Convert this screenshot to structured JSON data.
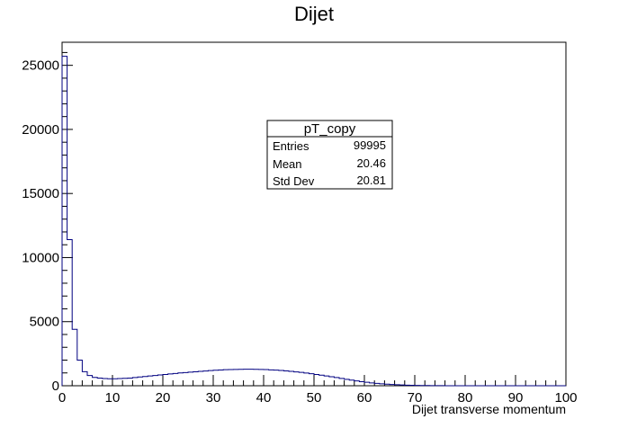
{
  "chart_data": {
    "type": "histogram",
    "title": "Dijet",
    "xlabel": "Dijet transverse momentum",
    "ylabel": "",
    "xlim": [
      0,
      100
    ],
    "ylim": [
      0,
      26800
    ],
    "x_ticks": [
      0,
      10,
      20,
      30,
      40,
      50,
      60,
      70,
      80,
      90,
      100
    ],
    "y_ticks": [
      0,
      5000,
      10000,
      15000,
      20000,
      25000
    ],
    "bin_width": 1,
    "bin_edges_start": 0,
    "values": [
      25700,
      11400,
      4400,
      2000,
      1100,
      800,
      650,
      600,
      560,
      540,
      540,
      560,
      580,
      600,
      640,
      680,
      720,
      760,
      800,
      840,
      880,
      920,
      960,
      1000,
      1030,
      1060,
      1090,
      1120,
      1150,
      1180,
      1210,
      1230,
      1250,
      1260,
      1270,
      1280,
      1285,
      1285,
      1280,
      1270,
      1260,
      1240,
      1220,
      1190,
      1160,
      1120,
      1080,
      1040,
      990,
      940,
      880,
      820,
      760,
      700,
      640,
      570,
      500,
      440,
      380,
      320,
      270,
      220,
      180,
      150,
      120,
      95,
      75,
      58,
      45,
      35,
      26,
      20,
      15,
      11,
      8,
      6,
      4,
      3,
      2,
      2,
      1,
      1,
      1,
      0,
      0,
      0,
      0,
      0,
      0,
      0,
      0,
      0,
      0,
      0,
      0,
      0,
      0,
      0,
      0,
      0
    ],
    "line_color": "#000080",
    "stats_box": {
      "title": "pT_copy",
      "rows": [
        {
          "label": "Entries",
          "value": "99995"
        },
        {
          "label": "Mean",
          "value": "20.46"
        },
        {
          "label": "Std Dev",
          "value": "20.81"
        }
      ]
    }
  }
}
